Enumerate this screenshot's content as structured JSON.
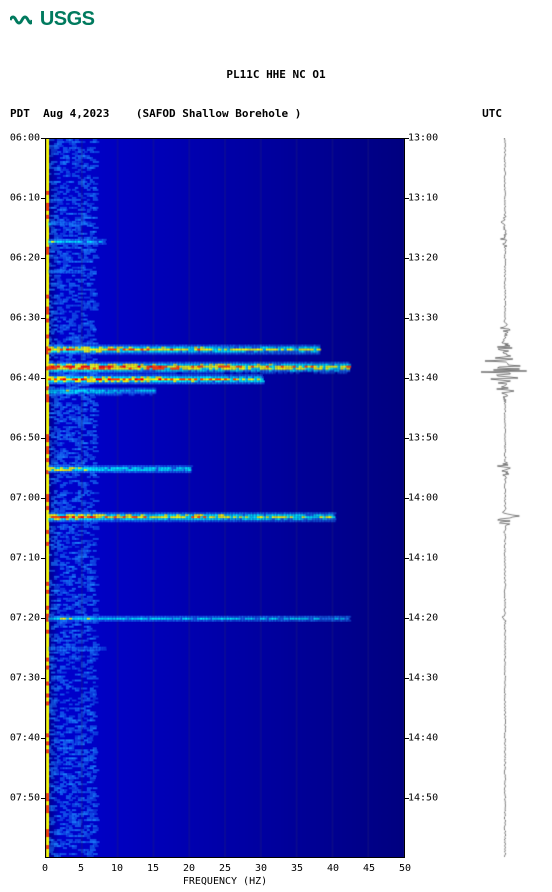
{
  "logo": {
    "text": "USGS"
  },
  "chart": {
    "title_line1": "PL11C HHE NC O1",
    "date": "Aug 4,2023",
    "station": "(SAFOD Shallow Borehole )",
    "tz_left": "PDT",
    "tz_right": "UTC",
    "x_label": "FREQUENCY (HZ)",
    "colors": {
      "bg_deep": "#000080",
      "bg_mid": "#0000cd",
      "low": "#1e90ff",
      "med": "#00ffff",
      "high": "#ffff00",
      "peak": "#ff4500",
      "hot": "#ff0000",
      "white": "#ffffff"
    },
    "y_ticks_left": [
      "06:00",
      "06:10",
      "06:20",
      "06:30",
      "06:40",
      "06:50",
      "07:00",
      "07:10",
      "07:20",
      "07:30",
      "07:40",
      "07:50"
    ],
    "y_ticks_right": [
      "13:00",
      "13:10",
      "13:20",
      "13:30",
      "13:40",
      "13:50",
      "14:00",
      "14:10",
      "14:20",
      "14:30",
      "14:40",
      "14:50"
    ],
    "x_ticks": [
      0,
      5,
      10,
      15,
      20,
      25,
      30,
      35,
      40,
      45,
      50
    ],
    "y_range_min": 0,
    "y_range_max": 120,
    "events": [
      {
        "t": 14,
        "freq_max": 6,
        "intensity": 0.4
      },
      {
        "t": 17,
        "freq_max": 8,
        "intensity": 0.5
      },
      {
        "t": 22,
        "freq_max": 5,
        "intensity": 0.3
      },
      {
        "t": 35,
        "freq_max": 38,
        "intensity": 0.85
      },
      {
        "t": 38,
        "freq_max": 42,
        "intensity": 1.0
      },
      {
        "t": 40,
        "freq_max": 30,
        "intensity": 0.9
      },
      {
        "t": 42,
        "freq_max": 15,
        "intensity": 0.6
      },
      {
        "t": 55,
        "freq_max": 20,
        "intensity": 0.7
      },
      {
        "t": 63,
        "freq_max": 40,
        "intensity": 0.85
      },
      {
        "t": 80,
        "freq_max": 42,
        "intensity": 0.5
      },
      {
        "t": 85,
        "freq_max": 8,
        "intensity": 0.3
      }
    ],
    "seismogram_spikes": [
      {
        "t": 14,
        "amp": 0.15
      },
      {
        "t": 17,
        "amp": 0.3
      },
      {
        "t": 32,
        "amp": 0.25
      },
      {
        "t": 35,
        "amp": 0.5
      },
      {
        "t": 37,
        "amp": 0.8
      },
      {
        "t": 38,
        "amp": 1.0
      },
      {
        "t": 39,
        "amp": 0.95
      },
      {
        "t": 40,
        "amp": 0.7
      },
      {
        "t": 42,
        "amp": 0.4
      },
      {
        "t": 55,
        "amp": 0.55
      },
      {
        "t": 63,
        "amp": 0.45
      },
      {
        "t": 64,
        "amp": 0.35
      },
      {
        "t": 80,
        "amp": 0.12
      }
    ]
  }
}
